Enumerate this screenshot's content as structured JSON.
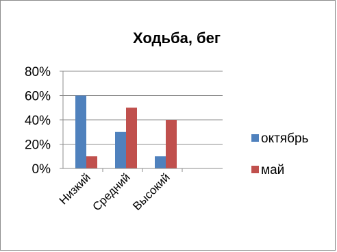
{
  "chart_data": {
    "type": "bar",
    "title": "Ходьба, бег",
    "categories": [
      "Низкий",
      "Средний",
      "Высокий"
    ],
    "series": [
      {
        "name": "октябрь",
        "values": [
          60,
          30,
          10
        ],
        "color": "#4f81bd"
      },
      {
        "name": "май",
        "values": [
          10,
          50,
          40
        ],
        "color": "#c0504d"
      }
    ],
    "ylim": [
      0,
      80
    ],
    "yticks": [
      "0%",
      "20%",
      "40%",
      "60%",
      "80%"
    ],
    "y_unit": "percent",
    "grid": true,
    "legend_position": "right"
  }
}
